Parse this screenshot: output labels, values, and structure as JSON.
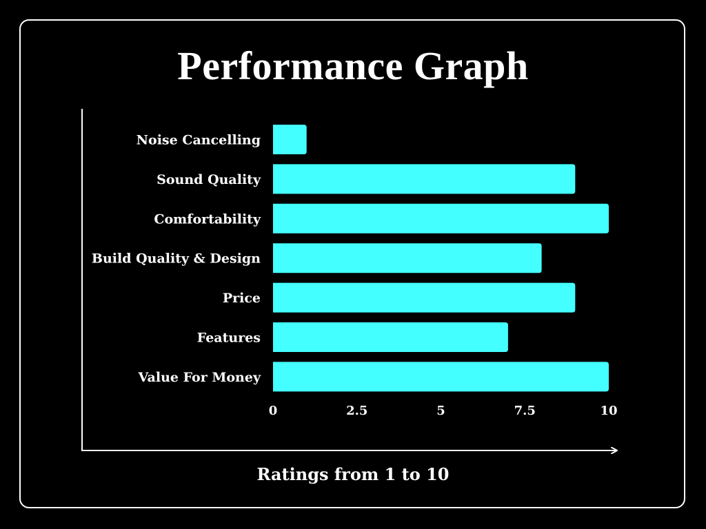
{
  "chart_data": {
    "type": "bar",
    "orientation": "horizontal",
    "title": "Performance Graph",
    "xlabel": "Ratings from 1 to 10",
    "ylabel": "",
    "categories": [
      "Noise Cancelling",
      "Sound Quality",
      "Comfortability",
      "Build Quality & Design",
      "Price",
      "Features",
      "Value For Money"
    ],
    "values": [
      1,
      9,
      10,
      8,
      9,
      7,
      10
    ],
    "xlim": [
      0,
      10
    ],
    "xticks": [
      "0",
      "2.5",
      "5",
      "7.5",
      "10"
    ],
    "xtick_values": [
      0,
      2.5,
      5,
      7.5,
      10
    ],
    "grid": false,
    "colors": {
      "bar": "#44FFFF",
      "background": "#000000",
      "text": "#FFFFFF"
    }
  }
}
